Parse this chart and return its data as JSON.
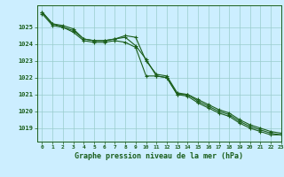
{
  "title": "Graphe pression niveau de la mer (hPa)",
  "xlim": [
    -0.5,
    23
  ],
  "ylim": [
    1018.2,
    1026.3
  ],
  "yticks": [
    1019,
    1020,
    1021,
    1022,
    1023,
    1024,
    1025
  ],
  "xticks": [
    0,
    1,
    2,
    3,
    4,
    5,
    6,
    7,
    8,
    9,
    10,
    11,
    12,
    13,
    14,
    15,
    16,
    17,
    18,
    19,
    20,
    21,
    22,
    23
  ],
  "bg_color": "#cceeff",
  "grid_color": "#99cccc",
  "line_color": "#1a5e1a",
  "line1": [
    1025.8,
    1025.1,
    1025.0,
    1024.7,
    1024.2,
    1024.1,
    1024.1,
    1024.2,
    1024.1,
    1023.8,
    1022.1,
    1022.1,
    1022.0,
    1021.0,
    1020.9,
    1020.5,
    1020.2,
    1019.9,
    1019.7,
    1019.3,
    1019.0,
    1018.8,
    1018.6,
    1018.6
  ],
  "line2": [
    1025.9,
    1025.2,
    1025.0,
    1024.8,
    1024.3,
    1024.2,
    1024.2,
    1024.3,
    1024.4,
    1023.9,
    1023.1,
    1022.1,
    1022.0,
    1021.0,
    1021.0,
    1020.6,
    1020.3,
    1020.0,
    1019.8,
    1019.4,
    1019.1,
    1018.9,
    1018.7,
    1018.6
  ],
  "line3": [
    1025.9,
    1025.2,
    1025.1,
    1024.9,
    1024.3,
    1024.2,
    1024.2,
    1024.3,
    1024.5,
    1024.4,
    1023.0,
    1022.2,
    1022.1,
    1021.1,
    1021.0,
    1020.7,
    1020.4,
    1020.1,
    1019.9,
    1019.5,
    1019.2,
    1019.0,
    1018.8,
    1018.7
  ],
  "marker": "+",
  "markersize": 3,
  "linewidth": 0.8
}
